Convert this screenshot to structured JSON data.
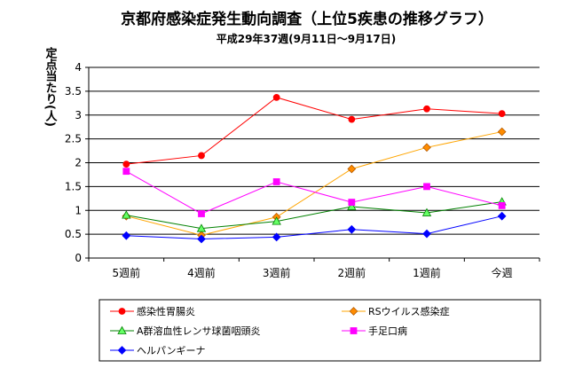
{
  "chart_data": {
    "type": "line",
    "title": "京都府感染症発生動向調査（上位5疾患の推移グラフ）",
    "subtitle": "平成29年37週(9月11日～9月17日)",
    "ylabel": "定点当たり(人)",
    "xlabel": "",
    "categories": [
      "5週前",
      "4週前",
      "3週前",
      "2週前",
      "1週前",
      "今週"
    ],
    "ylim": [
      0,
      4
    ],
    "yticks": [
      "0",
      "0.5",
      "1",
      "1.5",
      "2",
      "2.5",
      "3",
      "3.5",
      "4"
    ],
    "ytick_values": [
      0,
      0.5,
      1,
      1.5,
      2,
      2.5,
      3,
      3.5,
      4
    ],
    "grid": true,
    "legend_position": "bottom",
    "series": [
      {
        "name": "感染性胃腸炎",
        "values": [
          1.97,
          2.15,
          3.37,
          2.91,
          3.13,
          3.03
        ],
        "color": "#ff0000",
        "marker": "circle",
        "marker_color": "#ff0000"
      },
      {
        "name": "RSウイルス感染症",
        "values": [
          0.88,
          0.48,
          0.86,
          1.87,
          2.32,
          2.65
        ],
        "color": "#ffa500",
        "marker": "diamond",
        "marker_color": "#ff8c00"
      },
      {
        "name": "A群溶血性レンサ球菌咽頭炎",
        "values": [
          0.9,
          0.62,
          0.77,
          1.08,
          0.95,
          1.18
        ],
        "color": "#008000",
        "marker": "triangle",
        "marker_color": "#66ff66"
      },
      {
        "name": "手足口病",
        "values": [
          1.82,
          0.93,
          1.6,
          1.17,
          1.5,
          1.1
        ],
        "color": "#ff00ff",
        "marker": "square",
        "marker_color": "#ff00ff"
      },
      {
        "name": "ヘルパンギーナ",
        "values": [
          0.47,
          0.4,
          0.44,
          0.6,
          0.51,
          0.88
        ],
        "color": "#0000ff",
        "marker": "diamond",
        "marker_color": "#0000ff"
      }
    ]
  }
}
